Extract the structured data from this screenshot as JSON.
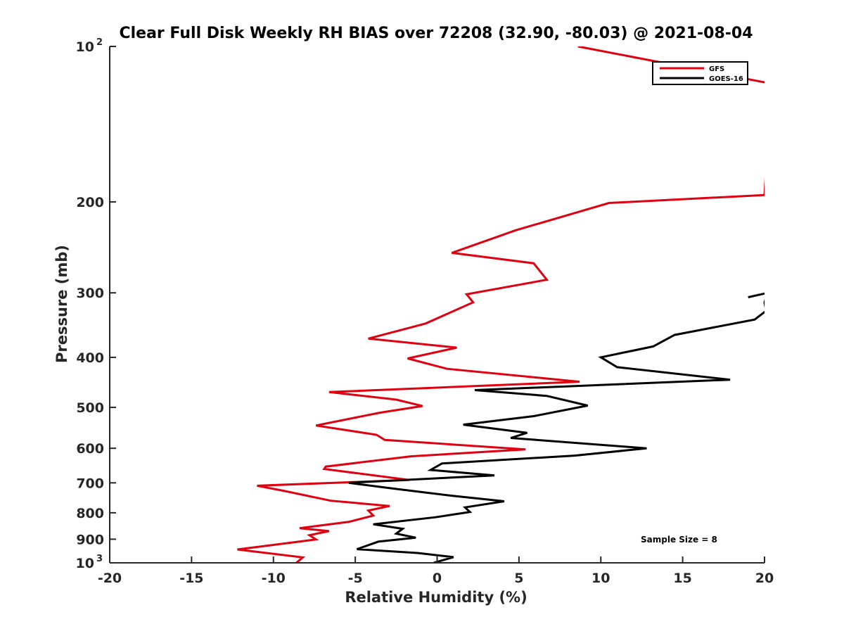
{
  "colors": {
    "gfs": "#e0000f",
    "goes16": "#000000",
    "axis": "#262626",
    "background": "#ffffff"
  },
  "chart_data": {
    "type": "line",
    "title": "Clear Full Disk Weekly RH BIAS over 72208 (32.90, -80.03) @ 2021-08-04",
    "xlabel": "Relative Humidity (%)",
    "ylabel": "Pressure (mb)",
    "xlim": [
      -20,
      20
    ],
    "ylim": [
      100,
      1000
    ],
    "y_scale": "log",
    "y_reversed": true,
    "grid": false,
    "legend_position": "top-right",
    "x_ticks": [
      "-20",
      "-15",
      "-10",
      "-5",
      "0",
      "5",
      "10",
      "15",
      "20"
    ],
    "x_tick_values": [
      -20,
      -15,
      -10,
      -5,
      0,
      5,
      10,
      15,
      20
    ],
    "y_ticks": [
      {
        "value": 100,
        "base": "10",
        "sup": "2"
      },
      {
        "value": 200,
        "base": "200",
        "sup": ""
      },
      {
        "value": 300,
        "base": "300",
        "sup": ""
      },
      {
        "value": 400,
        "base": "400",
        "sup": ""
      },
      {
        "value": 500,
        "base": "500",
        "sup": ""
      },
      {
        "value": 600,
        "base": "600",
        "sup": ""
      },
      {
        "value": 700,
        "base": "700",
        "sup": ""
      },
      {
        "value": 800,
        "base": "800",
        "sup": ""
      },
      {
        "value": 900,
        "base": "900",
        "sup": ""
      },
      {
        "value": 1000,
        "base": "10",
        "sup": "3"
      }
    ],
    "annotation": "Sample Size = 8",
    "series": [
      {
        "name": "GFS",
        "color": "#e0000f",
        "points": [
          [
            8.6,
            100
          ],
          [
            20.4,
            118
          ],
          [
            20.0,
            194
          ],
          [
            10.5,
            201
          ],
          [
            4.8,
            227
          ],
          [
            0.9,
            251
          ],
          [
            5.9,
            263
          ],
          [
            6.7,
            283
          ],
          [
            1.8,
            302
          ],
          [
            2.2,
            313
          ],
          [
            -0.7,
            344
          ],
          [
            -4.2,
            368
          ],
          [
            1.2,
            383
          ],
          [
            -1.8,
            402
          ],
          [
            0.6,
            421
          ],
          [
            8.7,
            446
          ],
          [
            -6.6,
            467
          ],
          [
            -2.5,
            483
          ],
          [
            -0.9,
            497
          ],
          [
            -3.5,
            512
          ],
          [
            -7.4,
            542
          ],
          [
            -3.7,
            565
          ],
          [
            -3.2,
            578
          ],
          [
            5.4,
            603
          ],
          [
            -1.6,
            622
          ],
          [
            -6.8,
            651
          ],
          [
            -6.9,
            658
          ],
          [
            -1.7,
            691
          ],
          [
            -11.0,
            709
          ],
          [
            -9.4,
            725
          ],
          [
            -6.5,
            758
          ],
          [
            -2.9,
            776
          ],
          [
            -4.2,
            792
          ],
          [
            -3.9,
            810
          ],
          [
            -5.4,
            833
          ],
          [
            -8.4,
            857
          ],
          [
            -6.6,
            868
          ],
          [
            -7.8,
            884
          ],
          [
            -7.4,
            901
          ],
          [
            -12.2,
            942
          ],
          [
            -8.2,
            976
          ],
          [
            -8.6,
            1000
          ]
        ]
      },
      {
        "name": "GOES-16",
        "color": "#000000",
        "points": [
          [
            19.0,
            306
          ],
          [
            20.2,
            300
          ],
          [
            20.0,
            313
          ],
          [
            20.1,
            325
          ],
          [
            19.4,
            338
          ],
          [
            14.5,
            362
          ],
          [
            13.2,
            381
          ],
          [
            10.0,
            400
          ],
          [
            11.0,
            418
          ],
          [
            17.9,
            442
          ],
          [
            2.3,
            463
          ],
          [
            6.7,
            475
          ],
          [
            9.2,
            496
          ],
          [
            5.9,
            520
          ],
          [
            1.6,
            540
          ],
          [
            5.5,
            560
          ],
          [
            4.5,
            573
          ],
          [
            12.8,
            600
          ],
          [
            8.4,
            620
          ],
          [
            0.3,
            642
          ],
          [
            -0.4,
            661
          ],
          [
            3.5,
            677
          ],
          [
            -5.4,
            700
          ],
          [
            -2.7,
            718
          ],
          [
            1.0,
            742
          ],
          [
            4.1,
            760
          ],
          [
            1.7,
            781
          ],
          [
            2.0,
            797
          ],
          [
            -0.1,
            816
          ],
          [
            -3.9,
            842
          ],
          [
            -2.1,
            859
          ],
          [
            -2.5,
            878
          ],
          [
            -1.3,
            894
          ],
          [
            -3.6,
            910
          ],
          [
            -4.9,
            941
          ],
          [
            -1.2,
            957
          ],
          [
            1.0,
            975
          ],
          [
            -0.2,
            1000
          ]
        ]
      }
    ]
  }
}
